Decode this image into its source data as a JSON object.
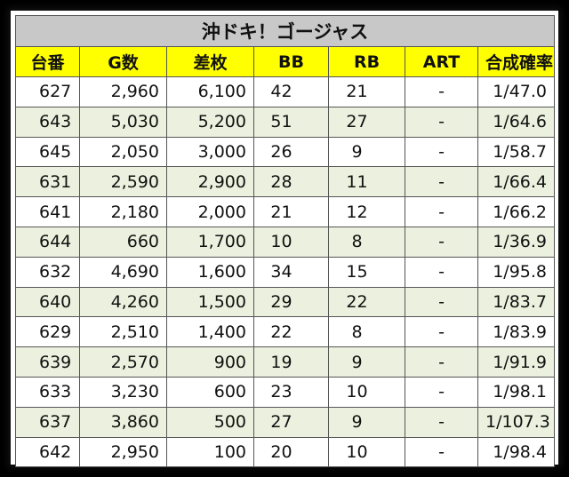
{
  "title": "沖ドキ！ゴージャス",
  "columns": [
    "台番",
    "G数",
    "差枚",
    "BB",
    "RB",
    "ART",
    "合成確率"
  ],
  "rows": [
    [
      "627",
      "2,960",
      "6,100",
      "42",
      "21",
      "-",
      "1/47.0"
    ],
    [
      "643",
      "5,030",
      "5,200",
      "51",
      "27",
      "-",
      "1/64.6"
    ],
    [
      "645",
      "2,050",
      "3,000",
      "26",
      "9",
      "-",
      "1/58.7"
    ],
    [
      "631",
      "2,590",
      "2,900",
      "28",
      "11",
      "-",
      "1/66.4"
    ],
    [
      "641",
      "2,180",
      "2,000",
      "21",
      "12",
      "-",
      "1/66.2"
    ],
    [
      "644",
      "660",
      "1,700",
      "10",
      "8",
      "-",
      "1/36.9"
    ],
    [
      "632",
      "4,690",
      "1,600",
      "34",
      "15",
      "-",
      "1/95.8"
    ],
    [
      "640",
      "4,260",
      "1,500",
      "29",
      "22",
      "-",
      "1/83.7"
    ],
    [
      "629",
      "2,510",
      "1,400",
      "22",
      "8",
      "-",
      "1/83.9"
    ],
    [
      "639",
      "2,570",
      "900",
      "19",
      "9",
      "-",
      "1/91.9"
    ],
    [
      "633",
      "3,230",
      "600",
      "23",
      "10",
      "-",
      "1/98.1"
    ],
    [
      "637",
      "3,860",
      "500",
      "27",
      "9",
      "-",
      "1/107.3"
    ],
    [
      "642",
      "2,950",
      "100",
      "20",
      "10",
      "-",
      "1/98.4"
    ]
  ],
  "colors": {
    "header_bg": "#ffff00",
    "title_bg": "#c8c8c8",
    "stripe_bg": "#ebf1de",
    "frame_bg": "#000000"
  }
}
